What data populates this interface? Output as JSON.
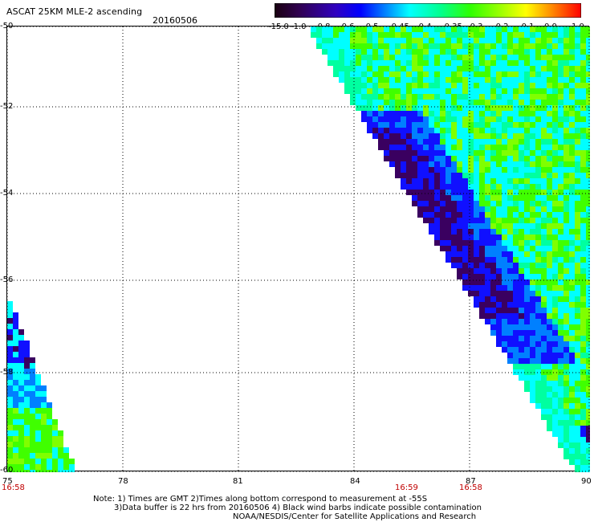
{
  "header": {
    "title": "ASCAT 25KM MLE-2 ascending",
    "date": "20160506"
  },
  "colorbar": {
    "labels": [
      "-15.0",
      "-1.0",
      "-0.8",
      "-0.6",
      "-0.5",
      "-0.45",
      "-0.4",
      "-0.35",
      "-0.3",
      "-0.2",
      "-0.1",
      "0.0",
      "1.0"
    ],
    "colors": [
      "#2a0033",
      "#4a0080",
      "#2010d0",
      "#0000ff",
      "#0060ff",
      "#00c0ff",
      "#00ffff",
      "#00ff80",
      "#30ff00",
      "#a0ff00",
      "#ffe000",
      "#ff8000",
      "#ff2000"
    ]
  },
  "axes": {
    "lat_ticks": [
      "-50",
      "-52",
      "-54",
      "-56",
      "-58",
      "-60"
    ],
    "lon_ticks": [
      "75",
      "78",
      "81",
      "84",
      "87",
      "90"
    ]
  },
  "time_labels": [
    "16:58",
    "16:59",
    "16:58"
  ],
  "notes": {
    "line1": "Note: 1) Times are GMT 2)Times along bottom correspond to measurement at -55S",
    "line2": "3)Data buffer is 22 hrs from 20160506 4) Black wind barbs indicate possible contamination",
    "line3": "NOAA/NESDIS/Center for Satellite Applications and Research"
  }
}
